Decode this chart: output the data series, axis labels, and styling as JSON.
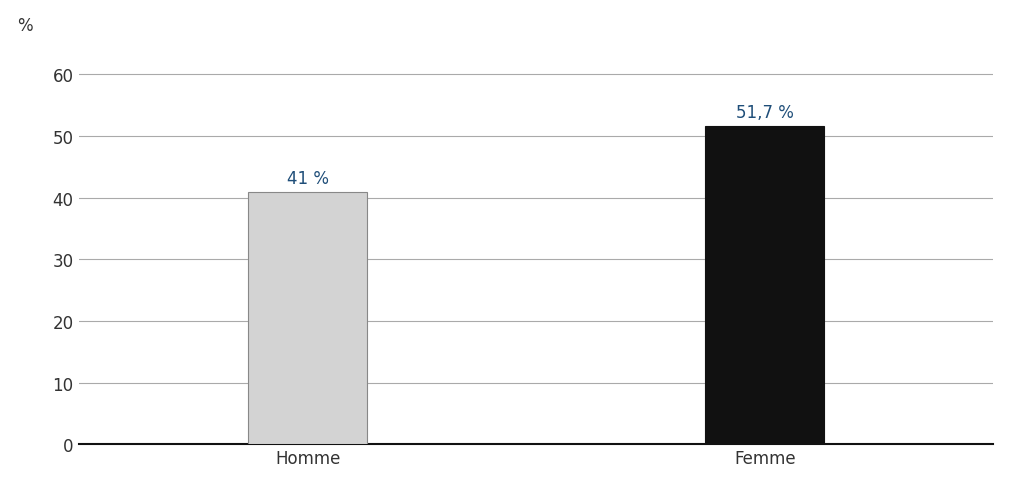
{
  "categories": [
    "Homme",
    "Femme"
  ],
  "values": [
    41.0,
    51.7
  ],
  "labels": [
    "41 %",
    "51,7 %"
  ],
  "bar_colors": [
    "#d3d3d3",
    "#111111"
  ],
  "bar_edge_colors": [
    "#888888",
    "#111111"
  ],
  "ylabel_annotation": "%",
  "ylim": [
    0,
    65
  ],
  "yticks": [
    0,
    10,
    20,
    30,
    40,
    50,
    60
  ],
  "background_color": "#ffffff",
  "label_color": "#1f4e79",
  "label_fontsize": 12,
  "tick_fontsize": 12,
  "tick_color": "#333333",
  "xlabel_fontsize": 12,
  "grid_color": "#aaaaaa",
  "grid_linewidth": 0.8,
  "bar_width": 0.13,
  "x_positions": [
    0.25,
    0.75
  ],
  "xlim": [
    0.0,
    1.0
  ]
}
